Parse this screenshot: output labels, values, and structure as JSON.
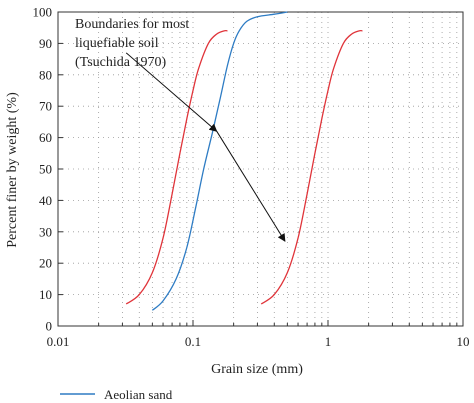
{
  "chart_data": {
    "type": "line",
    "xlabel": "Grain size (mm)",
    "ylabel": "Percent finer by weight (%)",
    "xscale": "log",
    "xlim": [
      0.01,
      10
    ],
    "ylim": [
      0,
      100
    ],
    "xticks": [
      "0.01",
      "0.1",
      "1",
      "10"
    ],
    "yticks": [
      0,
      10,
      20,
      30,
      40,
      50,
      60,
      70,
      80,
      90,
      100
    ],
    "grid": "dotted",
    "legend_position": "bottom-left",
    "annotation": {
      "lines": [
        "Boundaries for most",
        "liquefiable soil",
        "(Tsuchida 1970)"
      ]
    },
    "series": [
      {
        "name": "Aeolian sand",
        "color": "#2e7cc4",
        "x": [
          0.05,
          0.06,
          0.075,
          0.09,
          0.105,
          0.12,
          0.14,
          0.16,
          0.18,
          0.2,
          0.22,
          0.25,
          0.3,
          0.4,
          0.5
        ],
        "y": [
          5,
          8,
          15,
          25,
          38,
          50,
          62,
          73,
          83,
          90,
          94,
          97,
          98.5,
          99.3,
          100
        ]
      },
      {
        "name": "",
        "color": "#e0343a",
        "x": [
          0.032,
          0.04,
          0.05,
          0.06,
          0.07,
          0.08,
          0.09,
          0.1,
          0.11,
          0.13,
          0.15,
          0.17,
          0.18
        ],
        "y": [
          7,
          10,
          17,
          28,
          42,
          55,
          66,
          75,
          82,
          90,
          93,
          94,
          94
        ]
      },
      {
        "name": "",
        "color": "#e0343a",
        "x": [
          0.32,
          0.4,
          0.5,
          0.6,
          0.7,
          0.8,
          0.9,
          1.0,
          1.1,
          1.3,
          1.5,
          1.7,
          1.8
        ],
        "y": [
          7,
          10,
          17,
          28,
          42,
          55,
          66,
          75,
          82,
          90,
          93,
          94,
          94
        ]
      }
    ],
    "arrow": {
      "from": [
        0.032,
        87
      ],
      "via": [
        0.15,
        62
      ],
      "to": [
        0.48,
        27
      ]
    }
  }
}
